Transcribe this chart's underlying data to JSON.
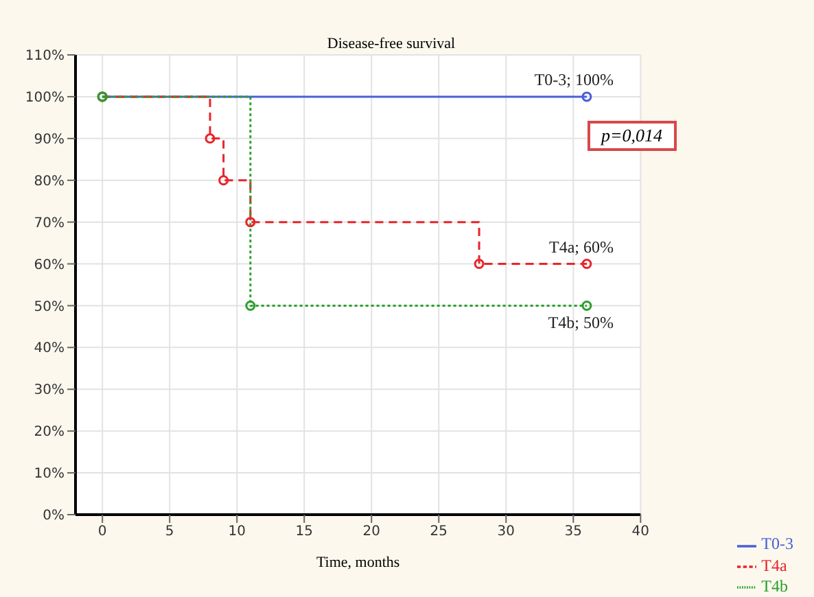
{
  "chart_data": {
    "type": "step",
    "title": "Disease-free survival",
    "xlabel": "Time, months",
    "xlim": [
      -2,
      40
    ],
    "xticks": [
      0,
      5,
      10,
      15,
      20,
      25,
      30,
      35,
      40
    ],
    "ylim": [
      0,
      110
    ],
    "yticks": [
      {
        "value": 0,
        "label": "0%"
      },
      {
        "value": 10,
        "label": "10%"
      },
      {
        "value": 20,
        "label": "20%"
      },
      {
        "value": 30,
        "label": "30%"
      },
      {
        "value": 40,
        "label": "40%"
      },
      {
        "value": 50,
        "label": "50%"
      },
      {
        "value": 60,
        "label": "60%"
      },
      {
        "value": 70,
        "label": "70%"
      },
      {
        "value": 80,
        "label": "80%"
      },
      {
        "value": 90,
        "label": "90%"
      },
      {
        "value": 100,
        "label": "100%"
      },
      {
        "value": 110,
        "label": "110%"
      }
    ],
    "grid": true,
    "legend": "bottom right",
    "marker": "circle",
    "series": [
      {
        "name": "T0-3",
        "color": "#4a5fd8",
        "line_style": "solid",
        "x": [
          0,
          36
        ],
        "values": [
          100,
          100
        ]
      },
      {
        "name": "T4a",
        "color": "#e8252a",
        "line_style": "dashed",
        "x": [
          0,
          8,
          9,
          11,
          28,
          36
        ],
        "values": [
          100,
          90,
          80,
          70,
          60,
          60
        ]
      },
      {
        "name": "T4b",
        "color": "#2aa02a",
        "line_style": "dotted",
        "x": [
          0,
          11,
          36
        ],
        "values": [
          100,
          50,
          50
        ]
      }
    ],
    "annotations": [
      "T0-3; 100%",
      "T4a; 60%",
      "T4b; 50%",
      "p=0,014"
    ]
  }
}
